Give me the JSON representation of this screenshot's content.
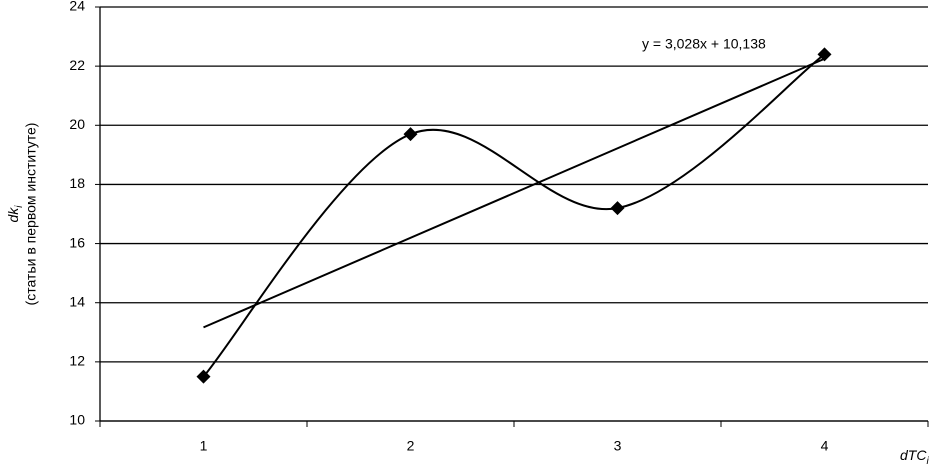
{
  "chart_data": {
    "type": "line",
    "categories": [
      "1",
      "2",
      "3",
      "4"
    ],
    "series": [
      {
        "name": "dk",
        "color": "#000000",
        "values": [
          11.5,
          19.7,
          17.2,
          22.4
        ]
      }
    ],
    "ylim": [
      10,
      24
    ],
    "yticks": [
      10,
      12,
      14,
      16,
      18,
      20,
      22,
      24
    ],
    "grid": true,
    "smooth": true,
    "trendline": {
      "label": "y = 3,028x + 10,138",
      "slope": 3.028,
      "intercept": 10.138
    },
    "ylabel": {
      "text": "dk",
      "subscript": "i",
      "note": "(статьи в первом институте)"
    },
    "xlabel": {
      "text": "dTC",
      "subscript": "i"
    }
  }
}
